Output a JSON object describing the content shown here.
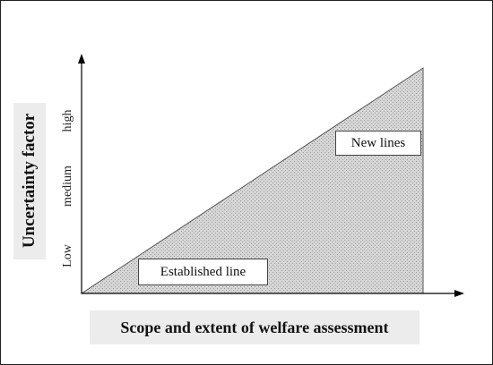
{
  "diagram": {
    "y_axis_label": "Uncertainty factor",
    "x_axis_label": "Scope and extent of welfare assessment",
    "y_ticks": [
      "Low",
      "medium",
      "high"
    ],
    "regions": {
      "established": "Established line",
      "new": "New lines"
    },
    "colors": {
      "fill": "#cfcfcf",
      "axis": "#000000",
      "label_background": "#ececec"
    }
  }
}
